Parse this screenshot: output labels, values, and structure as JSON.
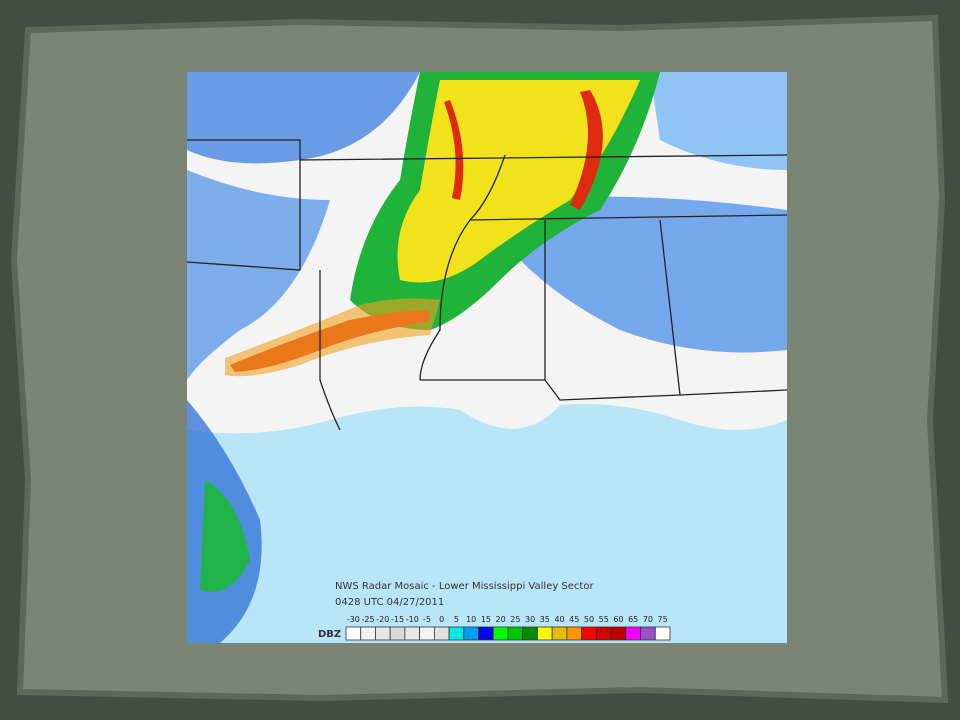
{
  "map": {
    "caption": "NWS Radar Mosaic - Lower Mississippi Valley Sector",
    "time": "0428 UTC 04/27/2011",
    "legend": {
      "unit": "DBZ",
      "scale": [
        {
          "value": -30,
          "color": "#ffffff"
        },
        {
          "value": -25,
          "color": "#f2f2f2"
        },
        {
          "value": -20,
          "color": "#e6e6e6"
        },
        {
          "value": -15,
          "color": "#dadada"
        },
        {
          "value": -10,
          "color": "#e8e8e8"
        },
        {
          "value": -5,
          "color": "#f4f4f4"
        },
        {
          "value": 0,
          "color": "#e0e0e0"
        },
        {
          "value": 5,
          "color": "#04e9e7"
        },
        {
          "value": 10,
          "color": "#019ff4"
        },
        {
          "value": 15,
          "color": "#0300f4"
        },
        {
          "value": 20,
          "color": "#02fd02"
        },
        {
          "value": 25,
          "color": "#01c501"
        },
        {
          "value": 30,
          "color": "#008e00"
        },
        {
          "value": 35,
          "color": "#fdf802"
        },
        {
          "value": 40,
          "color": "#e5bc00"
        },
        {
          "value": 45,
          "color": "#fd9500"
        },
        {
          "value": 50,
          "color": "#fd0000"
        },
        {
          "value": 55,
          "color": "#d40000"
        },
        {
          "value": 60,
          "color": "#bc0000"
        },
        {
          "value": 65,
          "color": "#f800fd"
        },
        {
          "value": 70,
          "color": "#9854c6"
        },
        {
          "value": 75,
          "color": "#fdfdfd"
        }
      ]
    }
  }
}
